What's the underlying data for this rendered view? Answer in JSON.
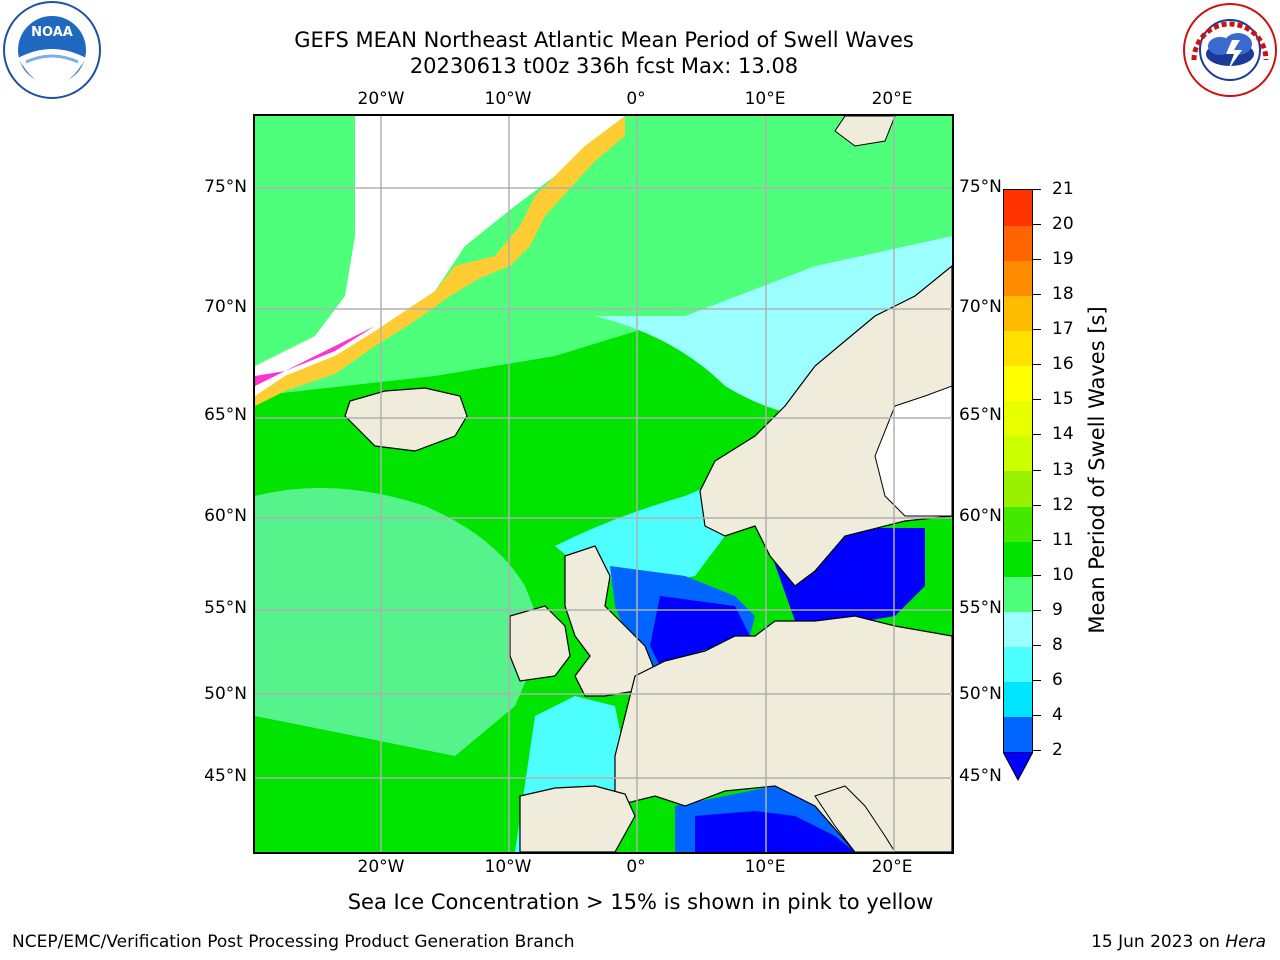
{
  "header": {
    "title_line1": "GEFS MEAN Northeast Atlantic Mean Period of Swell Waves",
    "title_line2": "20230613 t00z 336h fcst   Max: 13.08"
  },
  "logos": {
    "left": {
      "name": "noaa-logo",
      "text": "NOAA"
    },
    "right": {
      "name": "nws-logo",
      "text": "NATIONAL WEATHER SERVICE"
    }
  },
  "map": {
    "lon_ticks": [
      "20°W",
      "10°W",
      "0°",
      "10°E",
      "20°E"
    ],
    "lat_ticks": [
      "75°N",
      "70°N",
      "65°N",
      "60°N",
      "55°N",
      "50°N",
      "45°N"
    ],
    "land_color": "#efecdc",
    "ocean_default_color": "#00e400"
  },
  "colorbar": {
    "label": "Mean Period of Swell Waves [s]",
    "levels": [
      "2",
      "4",
      "6",
      "8",
      "9",
      "10",
      "11",
      "12",
      "13",
      "14",
      "15",
      "16",
      "17",
      "18",
      "19",
      "20",
      "21"
    ],
    "colors": [
      "#0066ff",
      "#00e5ff",
      "#4dffff",
      "#9cffff",
      "#4dff7a",
      "#00e400",
      "#44e900",
      "#99f000",
      "#ccff00",
      "#e8ff00",
      "#ffff00",
      "#ffe100",
      "#ffbb00",
      "#ff8c00",
      "#ff6400",
      "#ff3200"
    ],
    "under_color": "#0000ff"
  },
  "notes": {
    "ice_note": "Sea Ice Concentration > 15% is shown in pink to yellow"
  },
  "footer": {
    "left": "NCEP/EMC/Verification Post Processing Product Generation Branch",
    "right_prefix": "15 Jun 2023 on ",
    "right_host": "Hera"
  }
}
